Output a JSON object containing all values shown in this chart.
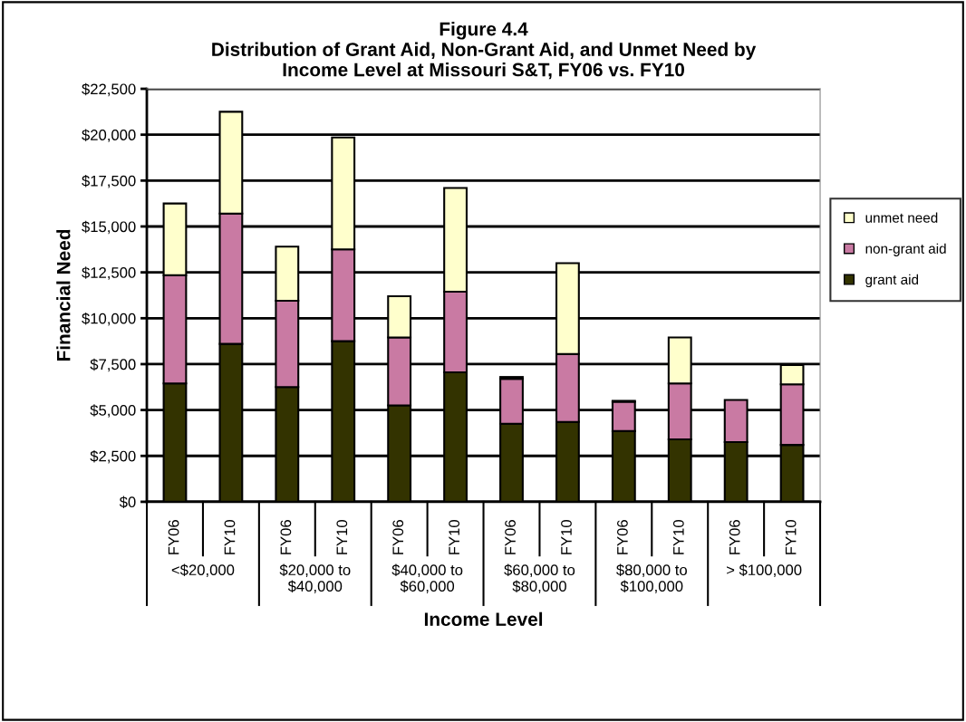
{
  "chart_data": {
    "type": "bar",
    "stacked": true,
    "title": "Figure 4.4\nDistribution of Grant Aid, Non-Grant Aid, and Unmet Need by\nIncome Level at Missouri S&T, FY06 vs. FY10",
    "xlabel": "Income Level",
    "ylabel": "Financial Need",
    "categories": [
      "FY06",
      "FY10",
      "FY06",
      "FY10",
      "FY06",
      "FY10",
      "FY06",
      "FY10",
      "FY06",
      "FY10",
      "FY06",
      "FY10"
    ],
    "annotations": [
      "<$20,000",
      "$20,000 to\n$40,000",
      "$40,000 to\n$60,000",
      "$60,000 to\n$80,000",
      "$80,000 to\n$100,000",
      "> $100,000"
    ],
    "series": [
      {
        "name": "grant aid",
        "color": "#333300",
        "values": [
          6450,
          8600,
          6250,
          8750,
          5250,
          7050,
          4250,
          4350,
          3850,
          3400,
          3250,
          3100
        ]
      },
      {
        "name": "non-grant aid",
        "color": "#c97aa3",
        "values": [
          5900,
          7100,
          4700,
          5000,
          3700,
          4400,
          2450,
          3700,
          1600,
          3050,
          2300,
          3300
        ]
      },
      {
        "name": "unmet need",
        "color": "#ffffcc",
        "values": [
          3900,
          5550,
          2950,
          6100,
          2250,
          5650,
          100,
          4950,
          50,
          2500,
          null,
          1050
        ]
      }
    ],
    "ylim": [
      0,
      22500
    ],
    "yticks": [
      {
        "value": 0,
        "label": "$0"
      },
      {
        "value": 2500,
        "label": "$2,500"
      },
      {
        "value": 5000,
        "label": "$5,000"
      },
      {
        "value": 7500,
        "label": "$7,500"
      },
      {
        "value": 10000,
        "label": "$10,000"
      },
      {
        "value": 12500,
        "label": "$12,500"
      },
      {
        "value": 15000,
        "label": "$15,000"
      },
      {
        "value": 17500,
        "label": "$17,500"
      },
      {
        "value": 20000,
        "label": "$20,000"
      },
      {
        "value": 22500,
        "label": "$22,500"
      }
    ],
    "grid": "y",
    "legend": "right"
  }
}
